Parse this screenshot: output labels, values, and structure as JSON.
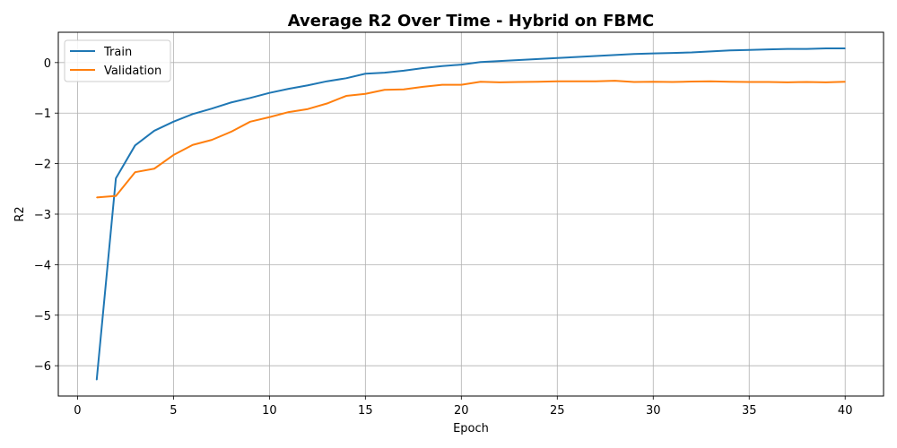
{
  "chart_data": {
    "type": "line",
    "title": "Average R2 Over Time - Hybrid on FBMC",
    "xlabel": "Epoch",
    "ylabel": "R2",
    "xlim": [
      -1,
      42
    ],
    "ylim": [
      -6.6,
      0.6
    ],
    "xticks": [
      0,
      5,
      10,
      15,
      20,
      25,
      30,
      35,
      40
    ],
    "yticks": [
      -6,
      -5,
      -4,
      -3,
      -2,
      -1,
      0
    ],
    "xtick_labels": [
      "0",
      "5",
      "10",
      "15",
      "20",
      "25",
      "30",
      "35",
      "40"
    ],
    "ytick_labels": [
      "−6",
      "−5",
      "−4",
      "−3",
      "−2",
      "−1",
      "0"
    ],
    "grid": true,
    "legend_position": "upper-left",
    "x": [
      1,
      2,
      3,
      4,
      5,
      6,
      7,
      8,
      9,
      10,
      11,
      12,
      13,
      14,
      15,
      16,
      17,
      18,
      19,
      20,
      21,
      22,
      23,
      24,
      25,
      26,
      27,
      28,
      29,
      30,
      31,
      32,
      33,
      34,
      35,
      36,
      37,
      38,
      39,
      40
    ],
    "series": [
      {
        "name": "Train",
        "color": "#1f77b4",
        "values": [
          -6.28,
          -2.29,
          -1.64,
          -1.35,
          -1.17,
          -1.02,
          -0.91,
          -0.79,
          -0.7,
          -0.6,
          -0.52,
          -0.45,
          -0.37,
          -0.31,
          -0.22,
          -0.2,
          -0.16,
          -0.11,
          -0.07,
          -0.04,
          0.01,
          0.03,
          0.05,
          0.07,
          0.09,
          0.11,
          0.13,
          0.15,
          0.17,
          0.18,
          0.19,
          0.2,
          0.22,
          0.24,
          0.25,
          0.26,
          0.27,
          0.27,
          0.28,
          0.28
        ]
      },
      {
        "name": "Validation",
        "color": "#ff7f0e",
        "values": [
          -2.67,
          -2.64,
          -2.17,
          -2.1,
          -1.83,
          -1.63,
          -1.53,
          -1.37,
          -1.17,
          -1.08,
          -0.98,
          -0.92,
          -0.81,
          -0.66,
          -0.62,
          -0.54,
          -0.53,
          -0.48,
          -0.44,
          -0.44,
          -0.38,
          -0.39,
          -0.385,
          -0.38,
          -0.37,
          -0.37,
          -0.37,
          -0.36,
          -0.385,
          -0.38,
          -0.385,
          -0.375,
          -0.37,
          -0.38,
          -0.385,
          -0.385,
          -0.39,
          -0.385,
          -0.39,
          -0.38
        ]
      }
    ]
  }
}
